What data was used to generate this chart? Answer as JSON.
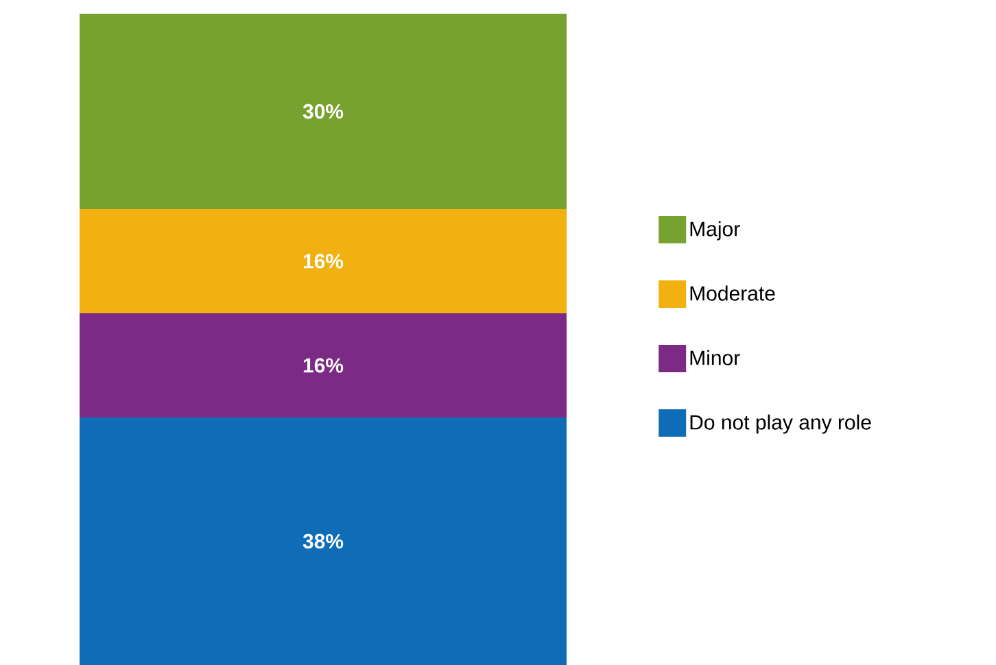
{
  "chart_data": {
    "type": "bar",
    "stacked": true,
    "categories": [
      null
    ],
    "legend": "right",
    "series": [
      {
        "name": "Do not play any role",
        "color": "#0f6db8",
        "values": [
          38
        ],
        "value_labels": [
          "38%"
        ]
      },
      {
        "name": "Minor",
        "color": "#7b2a85",
        "values": [
          16
        ],
        "value_labels": [
          "16%"
        ]
      },
      {
        "name": "Moderate",
        "color": "#f0b111",
        "values": [
          16
        ],
        "value_labels": [
          "16%"
        ]
      },
      {
        "name": "Major",
        "color": "#78a22f",
        "values": [
          30
        ],
        "value_labels": [
          "30%"
        ]
      }
    ]
  }
}
